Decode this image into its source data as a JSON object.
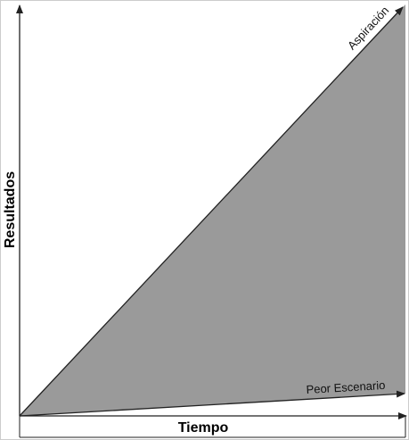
{
  "labels": {
    "y_axis": "Resultados",
    "x_axis": "Tiempo",
    "upper_line": "Aspiración",
    "lower_line": "Peor Escenario"
  }
}
